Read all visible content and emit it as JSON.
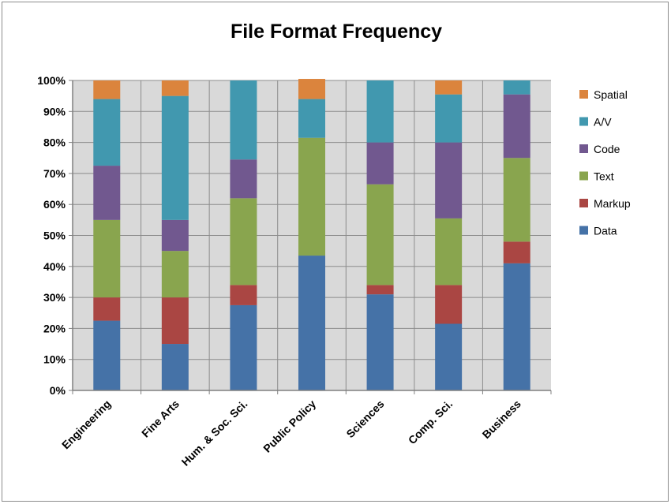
{
  "chart_data": {
    "type": "bar",
    "stacked": true,
    "title": "File Format Frequency",
    "xlabel": "",
    "ylabel": "",
    "ylim": [
      0,
      100
    ],
    "yticks": [
      "0%",
      "10%",
      "20%",
      "30%",
      "40%",
      "50%",
      "60%",
      "70%",
      "80%",
      "90%",
      "100%"
    ],
    "grid": true,
    "legend_position": "right",
    "categories": [
      "Engineering",
      "Fine Arts",
      "Hum. & Soc. Sci.",
      "Public Policy",
      "Sciences",
      "Comp. Sci.",
      "Business"
    ],
    "series": [
      {
        "name": "Data",
        "color": "#4572A7",
        "values": [
          22.5,
          15,
          27.5,
          43.5,
          31,
          21.5,
          41
        ]
      },
      {
        "name": "Markup",
        "color": "#AA4643",
        "values": [
          7.5,
          15,
          6.5,
          0,
          3,
          12.5,
          7
        ]
      },
      {
        "name": "Text",
        "color": "#89A54E",
        "values": [
          25,
          15,
          28,
          38,
          32.5,
          21.5,
          27
        ]
      },
      {
        "name": "Code",
        "color": "#71588F",
        "values": [
          17.5,
          10,
          12.5,
          0,
          13.5,
          24.5,
          20.5
        ]
      },
      {
        "name": "A/V",
        "color": "#4198AF",
        "values": [
          21.5,
          40,
          25.5,
          12.5,
          20,
          15.5,
          4.5
        ]
      },
      {
        "name": "Spatial",
        "color": "#DB843D",
        "values": [
          6,
          5,
          0,
          6.5,
          0,
          4.5,
          0
        ]
      }
    ]
  }
}
